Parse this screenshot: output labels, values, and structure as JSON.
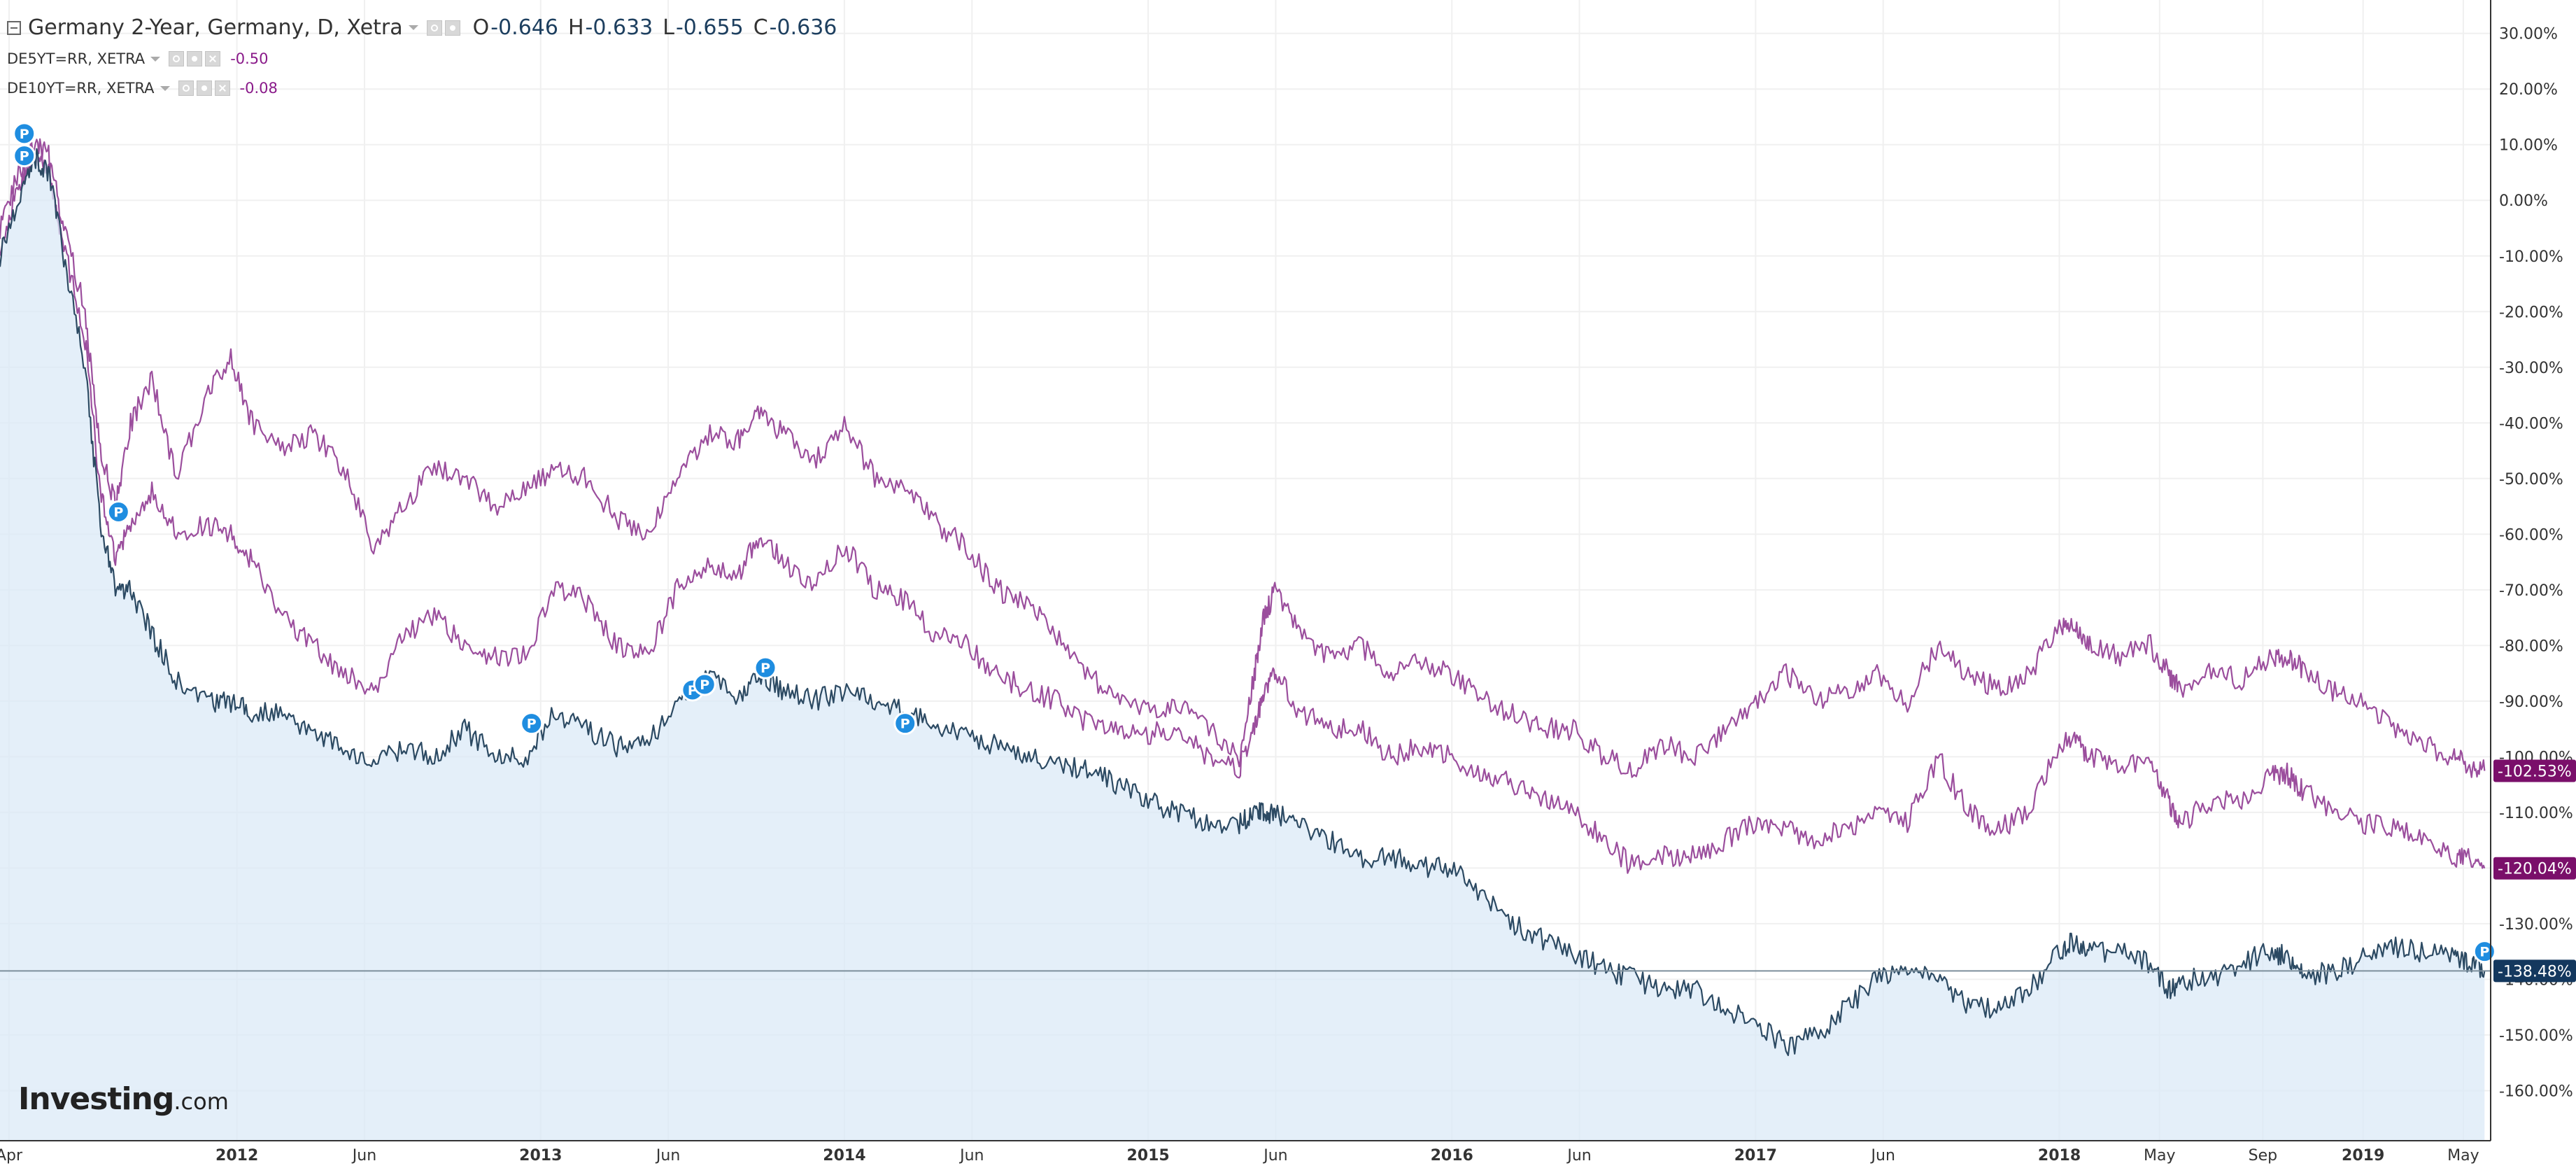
{
  "legend": {
    "main": {
      "title": "Germany 2-Year, Germany, D, Xetra",
      "open_label": "O",
      "open": "-0.646",
      "high_label": "H",
      "high": "-0.633",
      "low_label": "L",
      "low": "-0.655",
      "close_label": "C",
      "close": "-0.636"
    },
    "sub": [
      {
        "name": "DE5YT=RR, XETRA",
        "value": "-0.50"
      },
      {
        "name": "DE10YT=RR, XETRA",
        "value": "-0.08"
      }
    ]
  },
  "logo": {
    "brand": "Investing",
    "domain": ".com"
  },
  "colors": {
    "main_line": "#2c4a63",
    "main_fill": "#dbe9f7",
    "compare_line": "#9b4e9d",
    "badge_main": "#14385e",
    "badge_compare": "#7a0f6a",
    "marker": "#1f8de0",
    "grid": "#f0f0f0",
    "axis": "#333333"
  },
  "chart_data": {
    "type": "line",
    "title": "Germany 2-Year, Germany, D, Xetra",
    "xlabel": "",
    "ylabel": "",
    "x_range": [
      2011.22,
      2019.42
    ],
    "ylim": [
      -169,
      36
    ],
    "grid": true,
    "y_ticks": [
      "30.00%",
      "20.00%",
      "10.00%",
      "0.00%",
      "-10.00%",
      "-20.00%",
      "-30.00%",
      "-40.00%",
      "-50.00%",
      "-60.00%",
      "-70.00%",
      "-80.00%",
      "-90.00%",
      "-100.00%",
      "-110.00%",
      "-120.00%",
      "-130.00%",
      "-140.00%",
      "-150.00%",
      "-160.00%"
    ],
    "y_tick_values": [
      30,
      20,
      10,
      0,
      -10,
      -20,
      -30,
      -40,
      -50,
      -60,
      -70,
      -80,
      -90,
      -100,
      -110,
      -120,
      -130,
      -140,
      -150,
      -160
    ],
    "x_ticks": [
      {
        "label": "Apr",
        "x": 2011.25
      },
      {
        "label": "2012",
        "x": 2012.0
      },
      {
        "label": "Jun",
        "x": 2012.42
      },
      {
        "label": "2013",
        "x": 2013.0
      },
      {
        "label": "Jun",
        "x": 2013.42
      },
      {
        "label": "2014",
        "x": 2014.0
      },
      {
        "label": "Jun",
        "x": 2014.42
      },
      {
        "label": "2015",
        "x": 2015.0
      },
      {
        "label": "Jun",
        "x": 2015.42
      },
      {
        "label": "2016",
        "x": 2016.0
      },
      {
        "label": "Jun",
        "x": 2016.42
      },
      {
        "label": "2017",
        "x": 2017.0
      },
      {
        "label": "Jun",
        "x": 2017.42
      },
      {
        "label": "2018",
        "x": 2018.0
      },
      {
        "label": "May",
        "x": 2018.33
      },
      {
        "label": "Sep",
        "x": 2018.67
      },
      {
        "label": "2019",
        "x": 2019.0
      },
      {
        "label": "May",
        "x": 2019.33
      }
    ],
    "series": [
      {
        "name": "DE10YT=RR, XETRA",
        "role": "compare",
        "last_label": "-102.53%",
        "last_value": -102.53,
        "x": [
          2011.22,
          2011.28,
          2011.33,
          2011.38,
          2011.43,
          2011.5,
          2011.55,
          2011.6,
          2011.65,
          2011.72,
          2011.8,
          2011.9,
          2011.98,
          2012.05,
          2012.15,
          2012.25,
          2012.35,
          2012.45,
          2012.55,
          2012.65,
          2012.75,
          2012.85,
          2012.95,
          2013.05,
          2013.15,
          2013.25,
          2013.35,
          2013.45,
          2013.55,
          2013.65,
          2013.72,
          2013.8,
          2013.9,
          2014.0,
          2014.1,
          2014.2,
          2014.3,
          2014.4,
          2014.5,
          2014.6,
          2014.7,
          2014.8,
          2014.9,
          2015.0,
          2015.1,
          2015.2,
          2015.3,
          2015.35,
          2015.38,
          2015.42,
          2015.5,
          2015.6,
          2015.7,
          2015.8,
          2015.9,
          2016.0,
          2016.1,
          2016.2,
          2016.3,
          2016.4,
          2016.5,
          2016.6,
          2016.7,
          2016.8,
          2016.9,
          2017.0,
          2017.1,
          2017.2,
          2017.3,
          2017.4,
          2017.5,
          2017.6,
          2017.7,
          2017.8,
          2017.9,
          2018.0,
          2018.05,
          2018.1,
          2018.2,
          2018.3,
          2018.36,
          2018.4,
          2018.5,
          2018.6,
          2018.7,
          2018.75,
          2018.8,
          2018.9,
          2019.0,
          2019.1,
          2019.2,
          2019.3,
          2019.35,
          2019.4
        ],
        "y": [
          -5,
          5,
          10,
          8,
          -5,
          -20,
          -45,
          -55,
          -40,
          -32,
          -50,
          -35,
          -28,
          -40,
          -45,
          -42,
          -48,
          -62,
          -55,
          -48,
          -50,
          -55,
          -52,
          -48,
          -50,
          -57,
          -60,
          -50,
          -42,
          -43,
          -38,
          -42,
          -47,
          -40,
          -50,
          -52,
          -58,
          -62,
          -70,
          -72,
          -78,
          -85,
          -90,
          -92,
          -90,
          -95,
          -100,
          -85,
          -75,
          -70,
          -78,
          -82,
          -80,
          -85,
          -83,
          -85,
          -90,
          -92,
          -95,
          -95,
          -100,
          -102,
          -98,
          -100,
          -95,
          -90,
          -85,
          -90,
          -88,
          -85,
          -90,
          -80,
          -85,
          -88,
          -85,
          -77,
          -77,
          -80,
          -82,
          -80,
          -85,
          -88,
          -85,
          -86,
          -82,
          -82,
          -84,
          -88,
          -90,
          -95,
          -98,
          -100,
          -102,
          -102.53
        ]
      },
      {
        "name": "DE5YT=RR, XETRA",
        "role": "compare",
        "last_label": "-120.04%",
        "last_value": -120.04,
        "x": [
          2011.22,
          2011.28,
          2011.33,
          2011.38,
          2011.43,
          2011.5,
          2011.55,
          2011.6,
          2011.65,
          2011.72,
          2011.8,
          2011.9,
          2011.98,
          2012.05,
          2012.15,
          2012.25,
          2012.35,
          2012.45,
          2012.55,
          2012.65,
          2012.75,
          2012.85,
          2012.95,
          2013.05,
          2013.15,
          2013.25,
          2013.35,
          2013.45,
          2013.55,
          2013.65,
          2013.72,
          2013.8,
          2013.9,
          2014.0,
          2014.1,
          2014.2,
          2014.3,
          2014.4,
          2014.5,
          2014.6,
          2014.7,
          2014.8,
          2014.9,
          2015.0,
          2015.1,
          2015.2,
          2015.3,
          2015.35,
          2015.38,
          2015.42,
          2015.5,
          2015.6,
          2015.7,
          2015.8,
          2015.9,
          2016.0,
          2016.1,
          2016.2,
          2016.3,
          2016.4,
          2016.5,
          2016.6,
          2016.7,
          2016.8,
          2016.9,
          2017.0,
          2017.1,
          2017.2,
          2017.3,
          2017.4,
          2017.5,
          2017.6,
          2017.7,
          2017.8,
          2017.9,
          2018.0,
          2018.05,
          2018.1,
          2018.2,
          2018.3,
          2018.36,
          2018.4,
          2018.5,
          2018.6,
          2018.7,
          2018.75,
          2018.8,
          2018.9,
          2019.0,
          2019.1,
          2019.2,
          2019.3,
          2019.35,
          2019.4
        ],
        "y": [
          -8,
          2,
          8,
          5,
          -8,
          -25,
          -52,
          -65,
          -58,
          -52,
          -60,
          -58,
          -60,
          -65,
          -75,
          -80,
          -85,
          -88,
          -78,
          -75,
          -80,
          -82,
          -82,
          -70,
          -72,
          -80,
          -82,
          -70,
          -65,
          -68,
          -60,
          -65,
          -70,
          -62,
          -70,
          -72,
          -78,
          -80,
          -85,
          -88,
          -90,
          -94,
          -95,
          -96,
          -95,
          -100,
          -102,
          -95,
          -88,
          -85,
          -92,
          -95,
          -95,
          -100,
          -98,
          -100,
          -103,
          -105,
          -108,
          -110,
          -115,
          -120,
          -118,
          -118,
          -115,
          -112,
          -113,
          -115,
          -113,
          -110,
          -112,
          -100,
          -110,
          -113,
          -110,
          -98,
          -97,
          -100,
          -102,
          -100,
          -108,
          -112,
          -108,
          -108,
          -103,
          -103,
          -106,
          -110,
          -112,
          -113,
          -115,
          -118,
          -118,
          -120.04
        ]
      },
      {
        "name": "Germany 2-Year",
        "role": "main",
        "last_label": "-138.48%",
        "last_value": -138.48,
        "x": [
          2011.22,
          2011.28,
          2011.33,
          2011.38,
          2011.43,
          2011.5,
          2011.55,
          2011.6,
          2011.65,
          2011.72,
          2011.8,
          2011.9,
          2011.98,
          2012.05,
          2012.15,
          2012.25,
          2012.35,
          2012.45,
          2012.55,
          2012.65,
          2012.75,
          2012.85,
          2012.95,
          2013.05,
          2013.15,
          2013.25,
          2013.35,
          2013.45,
          2013.55,
          2013.65,
          2013.72,
          2013.8,
          2013.9,
          2014.0,
          2014.1,
          2014.2,
          2014.3,
          2014.4,
          2014.5,
          2014.6,
          2014.7,
          2014.8,
          2014.9,
          2015.0,
          2015.1,
          2015.2,
          2015.3,
          2015.35,
          2015.38,
          2015.42,
          2015.5,
          2015.6,
          2015.7,
          2015.8,
          2015.9,
          2016.0,
          2016.1,
          2016.2,
          2016.3,
          2016.4,
          2016.5,
          2016.6,
          2016.7,
          2016.8,
          2016.9,
          2017.0,
          2017.1,
          2017.2,
          2017.3,
          2017.4,
          2017.5,
          2017.6,
          2017.7,
          2017.8,
          2017.9,
          2018.0,
          2018.05,
          2018.1,
          2018.2,
          2018.3,
          2018.36,
          2018.4,
          2018.5,
          2018.6,
          2018.7,
          2018.75,
          2018.8,
          2018.9,
          2019.0,
          2019.1,
          2019.2,
          2019.3,
          2019.35,
          2019.4
        ],
        "y": [
          -10,
          0,
          8,
          5,
          -10,
          -30,
          -58,
          -70,
          -70,
          -78,
          -86,
          -90,
          -90,
          -92,
          -92,
          -96,
          -98,
          -102,
          -98,
          -100,
          -95,
          -100,
          -100,
          -92,
          -95,
          -98,
          -98,
          -90,
          -85,
          -90,
          -85,
          -88,
          -90,
          -88,
          -90,
          -92,
          -94,
          -96,
          -98,
          -100,
          -102,
          -102,
          -105,
          -108,
          -110,
          -112,
          -112,
          -110,
          -110,
          -110,
          -112,
          -115,
          -118,
          -118,
          -120,
          -120,
          -125,
          -130,
          -133,
          -135,
          -138,
          -140,
          -142,
          -142,
          -145,
          -148,
          -152,
          -150,
          -145,
          -140,
          -138,
          -140,
          -145,
          -145,
          -142,
          -135,
          -133,
          -135,
          -135,
          -137,
          -142,
          -140,
          -140,
          -137,
          -135,
          -136,
          -139,
          -139,
          -136,
          -134,
          -135,
          -136,
          -137,
          -138.48
        ]
      }
    ],
    "reference_line": -138.48,
    "markers": [
      {
        "x": 2011.3,
        "y": 12,
        "label": "P"
      },
      {
        "x": 2011.3,
        "y": 8,
        "label": "P"
      },
      {
        "x": 2011.61,
        "y": -56,
        "label": "P"
      },
      {
        "x": 2012.97,
        "y": -94,
        "label": "P"
      },
      {
        "x": 2013.5,
        "y": -88,
        "label": "P"
      },
      {
        "x": 2013.54,
        "y": -87,
        "label": "P"
      },
      {
        "x": 2013.74,
        "y": -84,
        "label": "P"
      },
      {
        "x": 2014.2,
        "y": -94,
        "label": "P"
      },
      {
        "x": 2019.4,
        "y": -135,
        "label": "P"
      }
    ]
  }
}
